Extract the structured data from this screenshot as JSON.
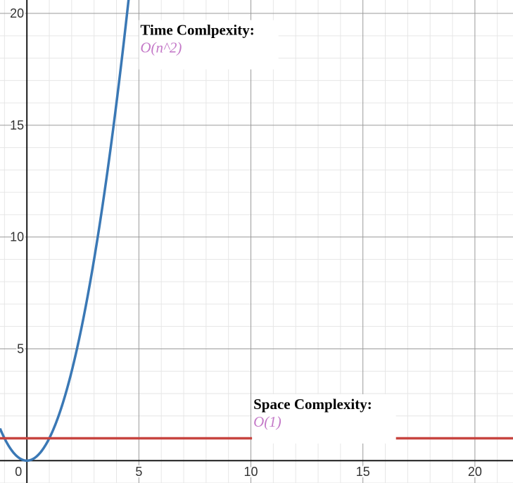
{
  "chart_data": {
    "type": "line",
    "title": "",
    "xlabel": "",
    "ylabel": "",
    "xlim": [
      -1.2,
      21.7
    ],
    "ylim": [
      -1.0,
      20.6
    ],
    "grid": true,
    "x_ticks": [
      {
        "value": 0,
        "label": "0"
      },
      {
        "value": 5,
        "label": "5"
      },
      {
        "value": 10,
        "label": "10"
      },
      {
        "value": 15,
        "label": "15"
      },
      {
        "value": 20,
        "label": "20"
      }
    ],
    "y_ticks": [
      {
        "value": 5,
        "label": "5"
      },
      {
        "value": 10,
        "label": "10"
      },
      {
        "value": 15,
        "label": "15"
      },
      {
        "value": 20,
        "label": "20"
      }
    ],
    "series": [
      {
        "kind": "curve",
        "formula": "x^2",
        "color": "#3a78b5",
        "x_range": [
          -1.2,
          4.6
        ]
      },
      {
        "kind": "horizontal",
        "y": 1,
        "color": "#c74440"
      }
    ],
    "annotations": [
      {
        "id": "time",
        "x": 5.0,
        "y": 19.7,
        "title": "Time Comlpexity:",
        "subtitle": "O(n^2)"
      },
      {
        "id": "space",
        "x": 10.05,
        "y": 2.97,
        "title": "Space Complexity:",
        "subtitle": "O(1)"
      }
    ]
  }
}
